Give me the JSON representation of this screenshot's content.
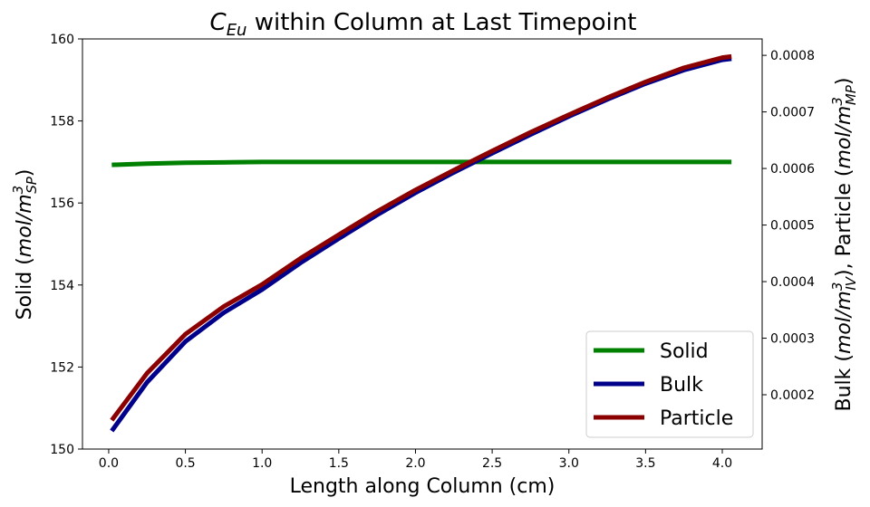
{
  "chart_data": {
    "type": "line",
    "title": [
      "C",
      "Eu",
      " within Column at Last Timepoint"
    ],
    "xlabel": "Length along Column (cm)",
    "ylabel": [
      "Solid (",
      "mol/m",
      "3",
      "SP",
      ")"
    ],
    "y2label": [
      "Bulk (",
      "mol/m",
      "3",
      "IV",
      "), Particle (",
      "mol/m",
      "3",
      "MP",
      ")"
    ],
    "x": [
      0.02,
      0.25,
      0.5,
      0.75,
      1.0,
      1.25,
      1.5,
      1.75,
      2.0,
      2.25,
      2.5,
      2.75,
      3.0,
      3.25,
      3.5,
      3.75,
      4.0,
      4.06
    ],
    "series": [
      {
        "name": "Solid",
        "color": "#008000",
        "axis": "y",
        "values": [
          156.93,
          156.96,
          156.98,
          156.99,
          157.0,
          157.0,
          157.0,
          157.0,
          157.0,
          157.0,
          157.0,
          157.0,
          157.0,
          157.0,
          157.0,
          157.0,
          157.0,
          157.0
        ]
      },
      {
        "name": "Bulk",
        "color": "#00008b",
        "axis": "y2",
        "values": [
          0.000136,
          0.000222,
          0.000294,
          0.000345,
          0.000386,
          0.000433,
          0.000476,
          0.000518,
          0.000557,
          0.000593,
          0.000627,
          0.00066,
          0.000692,
          0.000722,
          0.00075,
          0.000774,
          0.000792,
          0.000794
        ]
      },
      {
        "name": "Particle",
        "color": "#8b0000",
        "axis": "y2",
        "values": [
          0.000155,
          0.000238,
          0.000307,
          0.000356,
          0.000395,
          0.000441,
          0.000483,
          0.000524,
          0.000562,
          0.000597,
          0.000631,
          0.000664,
          0.000695,
          0.000725,
          0.000753,
          0.000778,
          0.000796,
          0.000798
        ]
      }
    ],
    "xlim": [
      -0.171,
      4.26
    ],
    "xticks": [
      {
        "value": 0,
        "label": "0.0"
      },
      0.5,
      {
        "value": 1,
        "label": "1.0"
      },
      1.5,
      {
        "value": 2,
        "label": "2.0"
      },
      2.5,
      {
        "value": 3,
        "label": "3.0"
      },
      3.5,
      {
        "value": 4,
        "label": "4.0"
      }
    ],
    "ylim": [
      150,
      160
    ],
    "yticks": [
      150,
      152,
      154,
      156,
      158,
      160
    ],
    "y2lim": [
      0.000104,
      0.000829
    ],
    "y2ticks": [
      0.0002,
      0.0003,
      0.0004,
      0.0005,
      0.0006,
      0.0007,
      0.0008
    ],
    "grid": false,
    "legend": "lower right"
  }
}
